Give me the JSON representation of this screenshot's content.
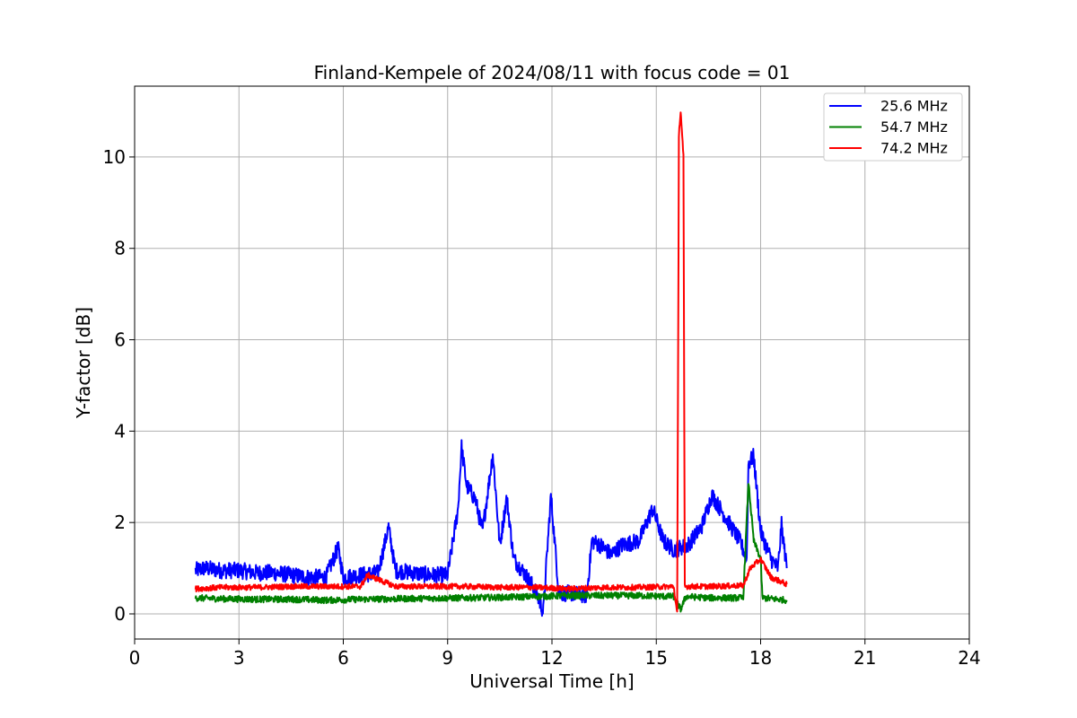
{
  "chart_data": {
    "type": "line",
    "title": "Finland-Kempele of 2024/08/11 with focus code = 01",
    "xlabel": "Universal Time [h]",
    "ylabel": "Y-factor [dB]",
    "xlim": [
      0,
      24
    ],
    "ylim": [
      -0.55,
      11.55
    ],
    "xticks": [
      0,
      3,
      6,
      9,
      12,
      15,
      18,
      21,
      24
    ],
    "yticks": [
      0,
      2,
      4,
      6,
      8,
      10
    ],
    "grid": true,
    "legend_position": "top-right",
    "series": [
      {
        "name": "25.6 MHz",
        "color": "#0000ff",
        "points": [
          [
            1.75,
            0.95
          ],
          [
            2.0,
            1.0
          ],
          [
            2.5,
            0.95
          ],
          [
            3.0,
            0.95
          ],
          [
            3.5,
            0.9
          ],
          [
            4.0,
            0.9
          ],
          [
            4.5,
            0.85
          ],
          [
            5.0,
            0.8
          ],
          [
            5.5,
            0.8
          ],
          [
            5.85,
            1.45
          ],
          [
            6.0,
            0.8
          ],
          [
            6.5,
            0.85
          ],
          [
            7.0,
            0.9
          ],
          [
            7.3,
            1.9
          ],
          [
            7.5,
            0.95
          ],
          [
            8.0,
            0.9
          ],
          [
            8.5,
            0.85
          ],
          [
            9.0,
            0.85
          ],
          [
            9.3,
            2.3
          ],
          [
            9.4,
            3.65
          ],
          [
            9.55,
            2.8
          ],
          [
            9.8,
            2.5
          ],
          [
            10.0,
            1.8
          ],
          [
            10.3,
            3.5
          ],
          [
            10.5,
            1.5
          ],
          [
            10.7,
            2.55
          ],
          [
            10.9,
            1.2
          ],
          [
            11.2,
            0.9
          ],
          [
            11.5,
            0.55
          ],
          [
            11.75,
            0.05
          ],
          [
            11.97,
            2.6
          ],
          [
            12.2,
            0.45
          ],
          [
            12.6,
            0.45
          ],
          [
            13.0,
            0.4
          ],
          [
            13.15,
            1.6
          ],
          [
            13.4,
            1.5
          ],
          [
            13.7,
            1.3
          ],
          [
            14.0,
            1.5
          ],
          [
            14.5,
            1.6
          ],
          [
            14.9,
            2.3
          ],
          [
            15.2,
            1.6
          ],
          [
            15.5,
            1.4
          ],
          [
            15.9,
            1.5
          ],
          [
            16.3,
            1.9
          ],
          [
            16.6,
            2.6
          ],
          [
            17.0,
            2.1
          ],
          [
            17.4,
            1.6
          ],
          [
            17.6,
            1.2
          ],
          [
            17.65,
            3.3
          ],
          [
            17.8,
            3.45
          ],
          [
            18.0,
            1.8
          ],
          [
            18.3,
            1.2
          ],
          [
            18.5,
            1.0
          ],
          [
            18.6,
            1.95
          ],
          [
            18.75,
            1.0
          ]
        ]
      },
      {
        "name": "54.7 MHz",
        "color": "#008000",
        "points": [
          [
            1.75,
            0.35
          ],
          [
            2.5,
            0.33
          ],
          [
            3.5,
            0.32
          ],
          [
            4.5,
            0.32
          ],
          [
            5.5,
            0.3
          ],
          [
            6.5,
            0.32
          ],
          [
            7.5,
            0.33
          ],
          [
            8.5,
            0.34
          ],
          [
            9.5,
            0.35
          ],
          [
            10.5,
            0.36
          ],
          [
            11.5,
            0.38
          ],
          [
            12.5,
            0.4
          ],
          [
            13.5,
            0.4
          ],
          [
            14.5,
            0.4
          ],
          [
            15.5,
            0.38
          ],
          [
            15.7,
            0.1
          ],
          [
            15.85,
            0.38
          ],
          [
            16.5,
            0.35
          ],
          [
            17.5,
            0.35
          ],
          [
            17.65,
            2.9
          ],
          [
            17.8,
            1.6
          ],
          [
            18.0,
            1.2
          ],
          [
            18.05,
            0.35
          ],
          [
            18.75,
            0.3
          ]
        ]
      },
      {
        "name": "74.2 MHz",
        "color": "#ff0000",
        "points": [
          [
            1.75,
            0.55
          ],
          [
            2.5,
            0.58
          ],
          [
            3.5,
            0.58
          ],
          [
            4.5,
            0.6
          ],
          [
            5.5,
            0.6
          ],
          [
            6.5,
            0.6
          ],
          [
            6.7,
            0.85
          ],
          [
            7.5,
            0.6
          ],
          [
            8.5,
            0.6
          ],
          [
            9.5,
            0.6
          ],
          [
            10.5,
            0.58
          ],
          [
            11.5,
            0.58
          ],
          [
            12.5,
            0.55
          ],
          [
            13.5,
            0.58
          ],
          [
            14.5,
            0.58
          ],
          [
            15.5,
            0.6
          ],
          [
            15.6,
            0.0
          ],
          [
            15.65,
            10.5
          ],
          [
            15.7,
            11.0
          ],
          [
            15.78,
            10.0
          ],
          [
            15.82,
            0.6
          ],
          [
            16.5,
            0.6
          ],
          [
            17.5,
            0.62
          ],
          [
            17.7,
            1.0
          ],
          [
            18.0,
            1.2
          ],
          [
            18.3,
            0.8
          ],
          [
            18.75,
            0.65
          ]
        ]
      }
    ]
  }
}
